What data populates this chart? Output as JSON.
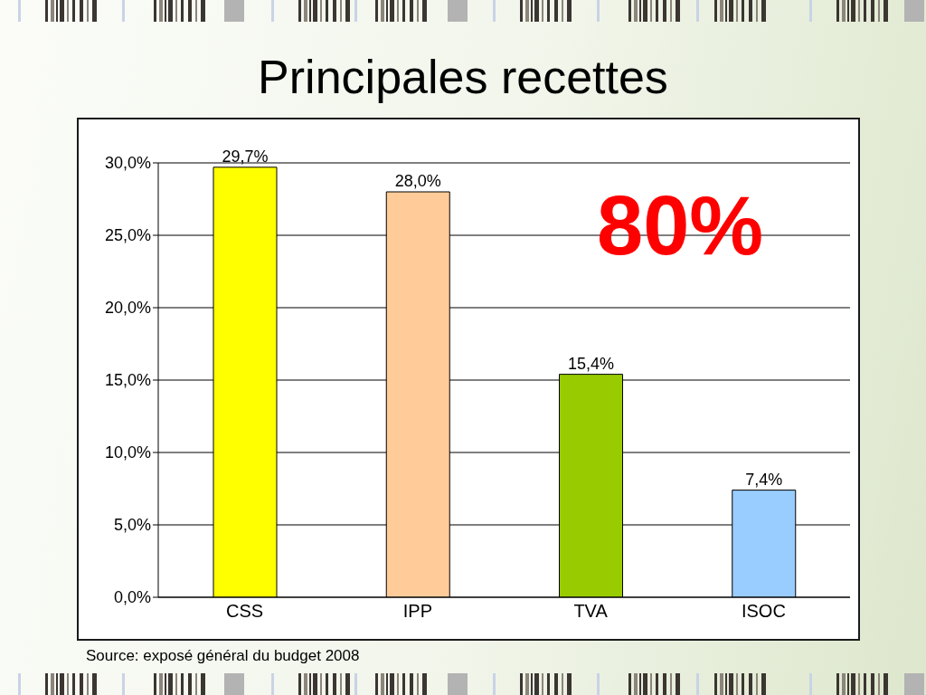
{
  "chart_data": {
    "type": "bar",
    "title": "Principales recettes",
    "categories": [
      "CSS",
      "IPP",
      "TVA",
      "ISOC"
    ],
    "values": [
      29.7,
      28.0,
      15.4,
      7.4
    ],
    "colors": [
      "#ffff00",
      "#ffcc99",
      "#99cc00",
      "#99ccff"
    ],
    "value_labels": [
      "29,7%",
      "28,0%",
      "15,4%",
      "7,4%"
    ],
    "ylim": [
      0,
      30
    ],
    "yticks": [
      {
        "value": 0,
        "label": "0,0%"
      },
      {
        "value": 5,
        "label": "5,0%"
      },
      {
        "value": 10,
        "label": "10,0%"
      },
      {
        "value": 15,
        "label": "15,0%"
      },
      {
        "value": 20,
        "label": "20,0%"
      },
      {
        "value": 25,
        "label": "25,0%"
      },
      {
        "value": 30,
        "label": "30,0%"
      }
    ],
    "grid": "y",
    "annotations": [
      "80%",
      "Source: exposé général du budget 2008"
    ]
  }
}
